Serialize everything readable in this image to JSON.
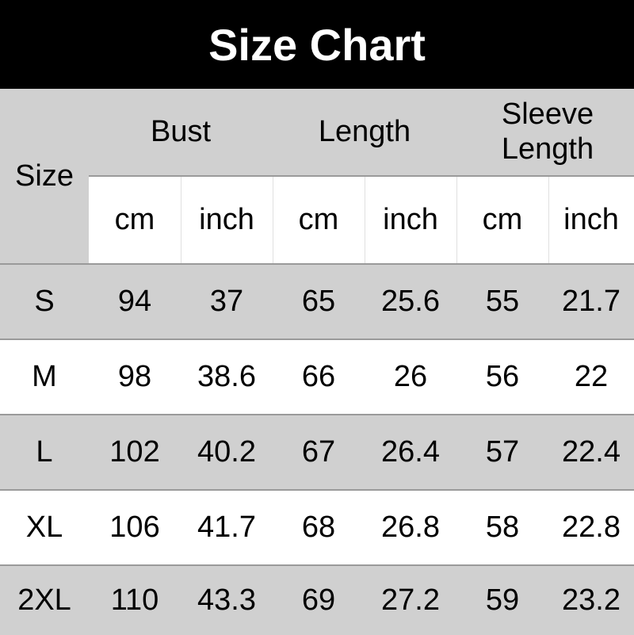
{
  "title": "Size Chart",
  "header": {
    "size": "Size",
    "groups": [
      "Bust",
      "Length",
      "Sleeve Length"
    ],
    "units": [
      "cm",
      "inch",
      "cm",
      "inch",
      "cm",
      "inch"
    ]
  },
  "rows": [
    {
      "size": "S",
      "values": [
        "94",
        "37",
        "65",
        "25.6",
        "55",
        "21.7"
      ]
    },
    {
      "size": "M",
      "values": [
        "98",
        "38.6",
        "66",
        "26",
        "56",
        "22"
      ]
    },
    {
      "size": "L",
      "values": [
        "102",
        "40.2",
        "67",
        "26.4",
        "57",
        "22.4"
      ]
    },
    {
      "size": "XL",
      "values": [
        "106",
        "41.7",
        "68",
        "26.8",
        "58",
        "22.8"
      ]
    },
    {
      "size": "2XL",
      "values": [
        "110",
        "43.3",
        "69",
        "27.2",
        "59",
        "23.2"
      ]
    }
  ]
}
